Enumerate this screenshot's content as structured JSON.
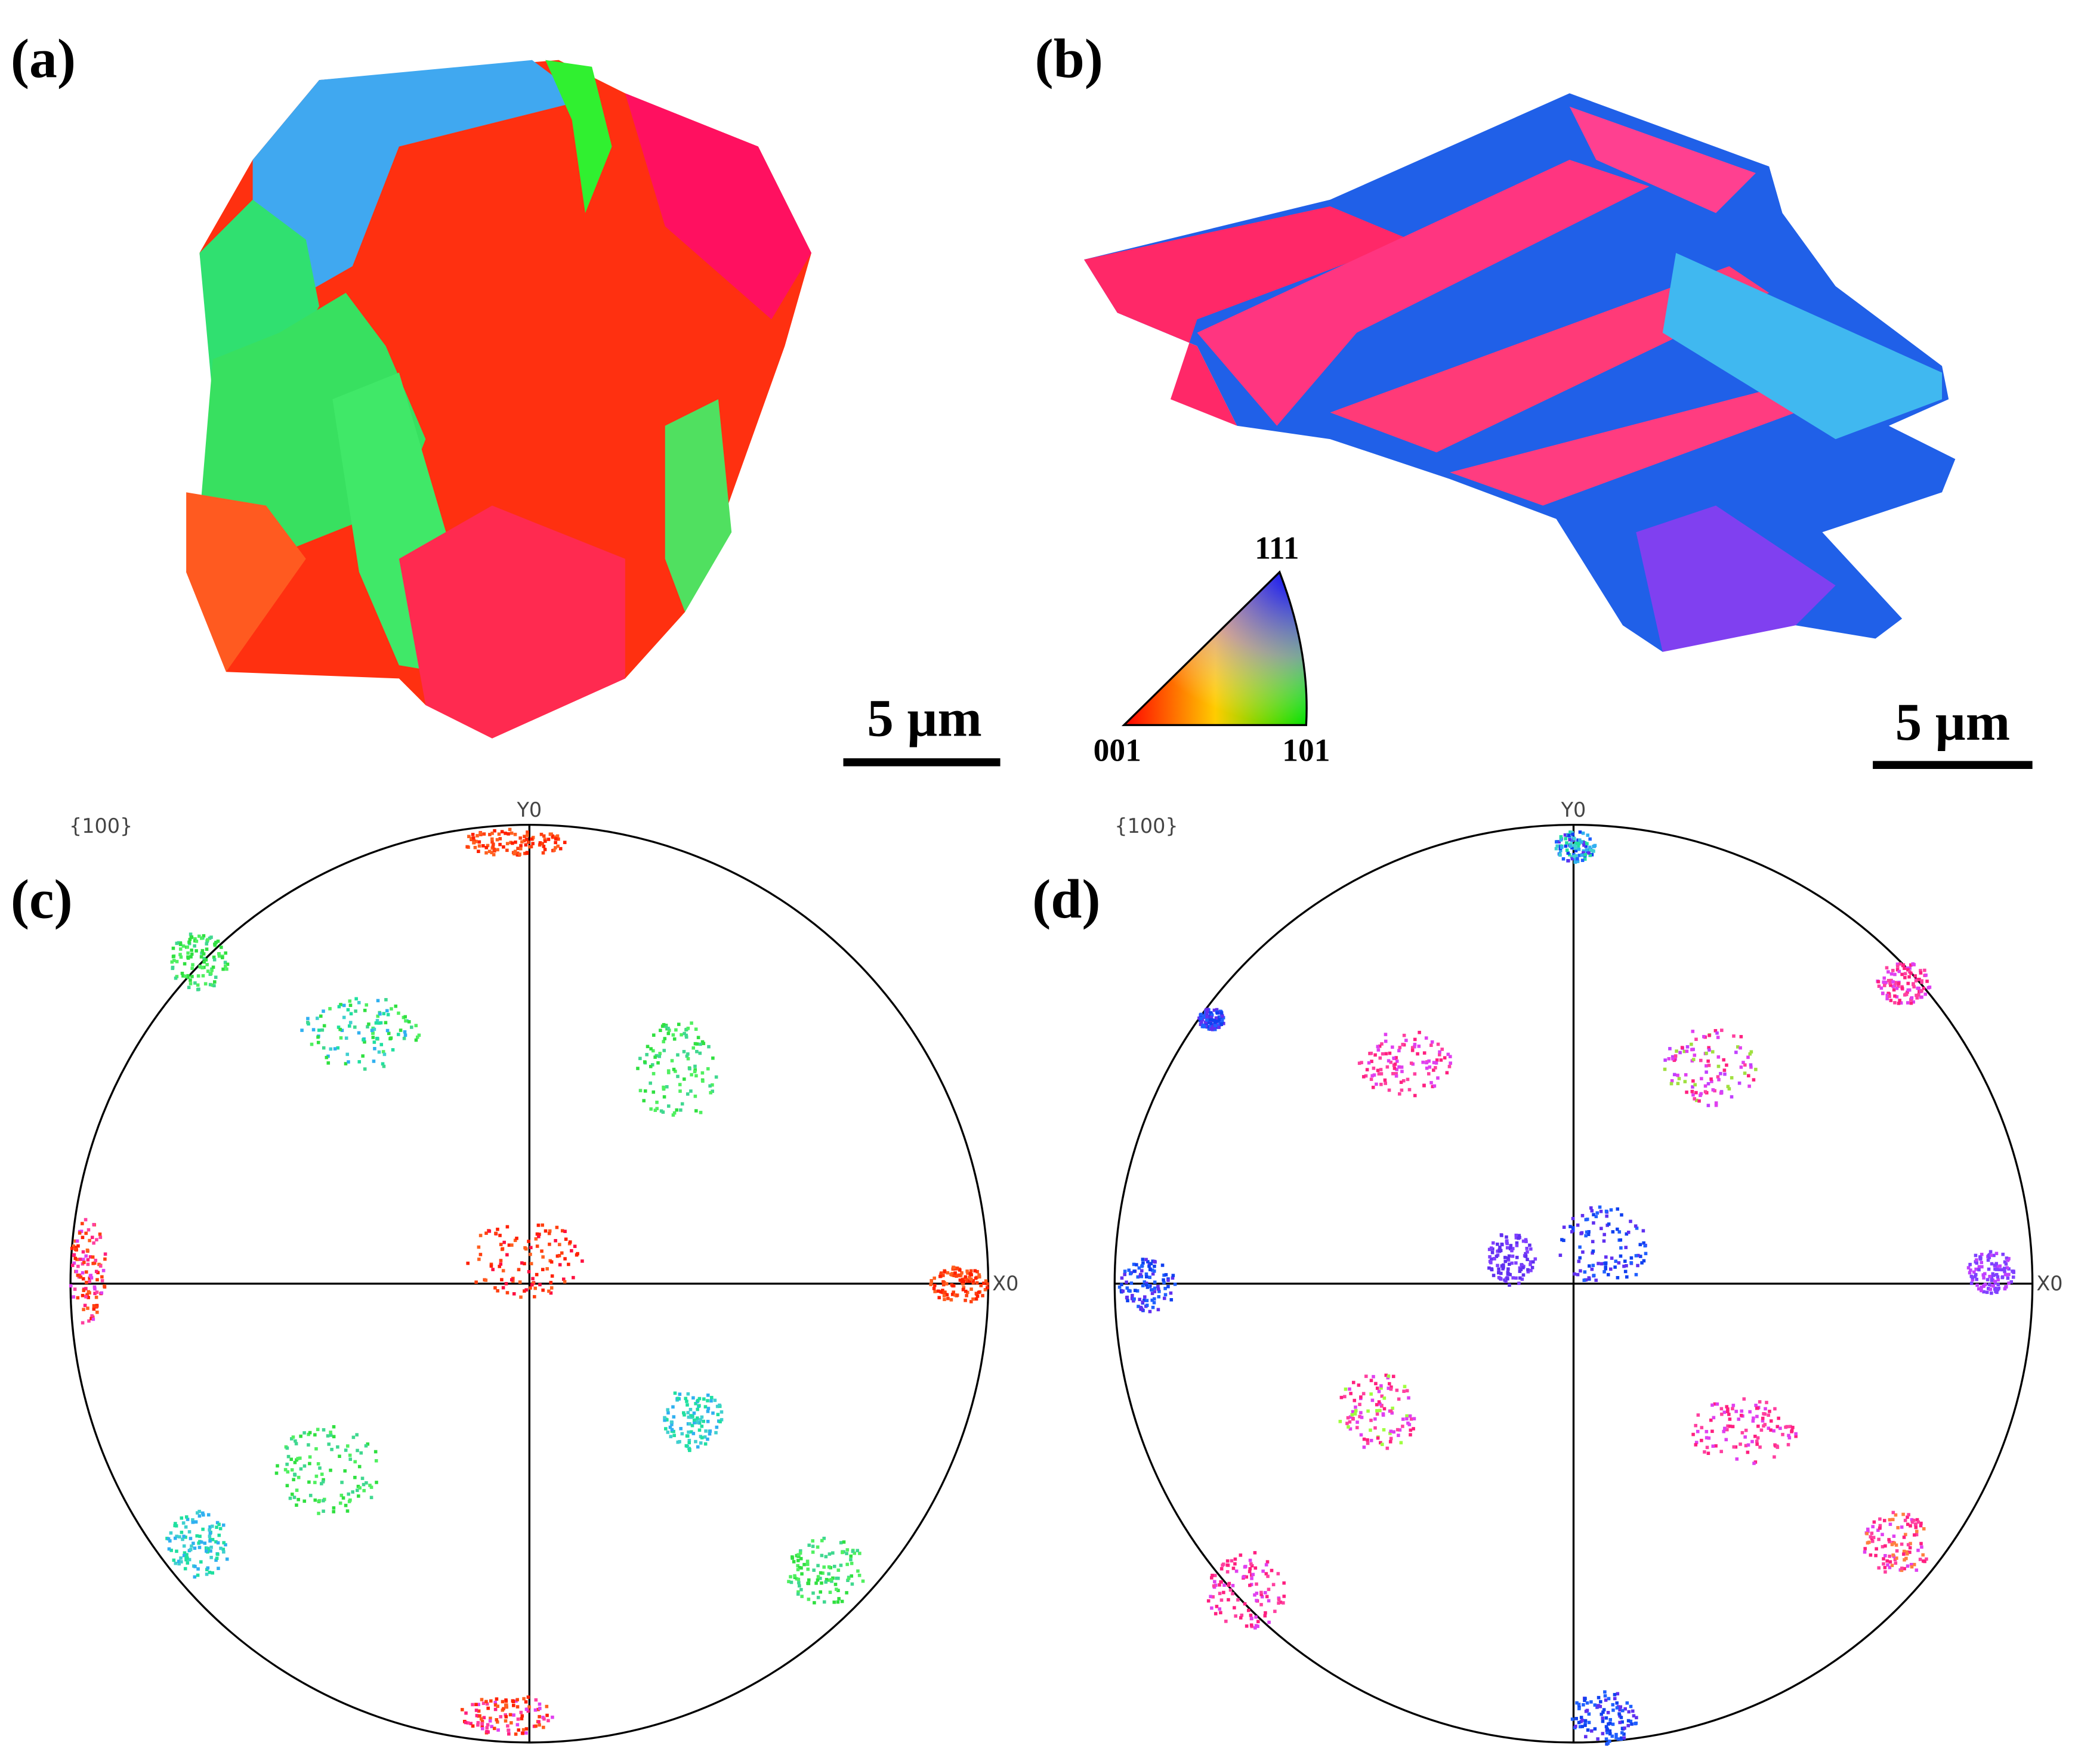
{
  "panels": [
    {
      "label": "(a)",
      "scale_bar": "5 µm"
    },
    {
      "label": "(b)",
      "scale_bar": "5 µm"
    },
    {
      "label": "(c)",
      "pole_figure": "{100}",
      "y_axis": "Y0",
      "x_axis": "X0"
    },
    {
      "label": "(d)",
      "pole_figure": "{100}",
      "y_axis": "Y0",
      "x_axis": "X0"
    }
  ],
  "ipf_legend": {
    "top": "111",
    "left": "001",
    "right": "101"
  }
}
